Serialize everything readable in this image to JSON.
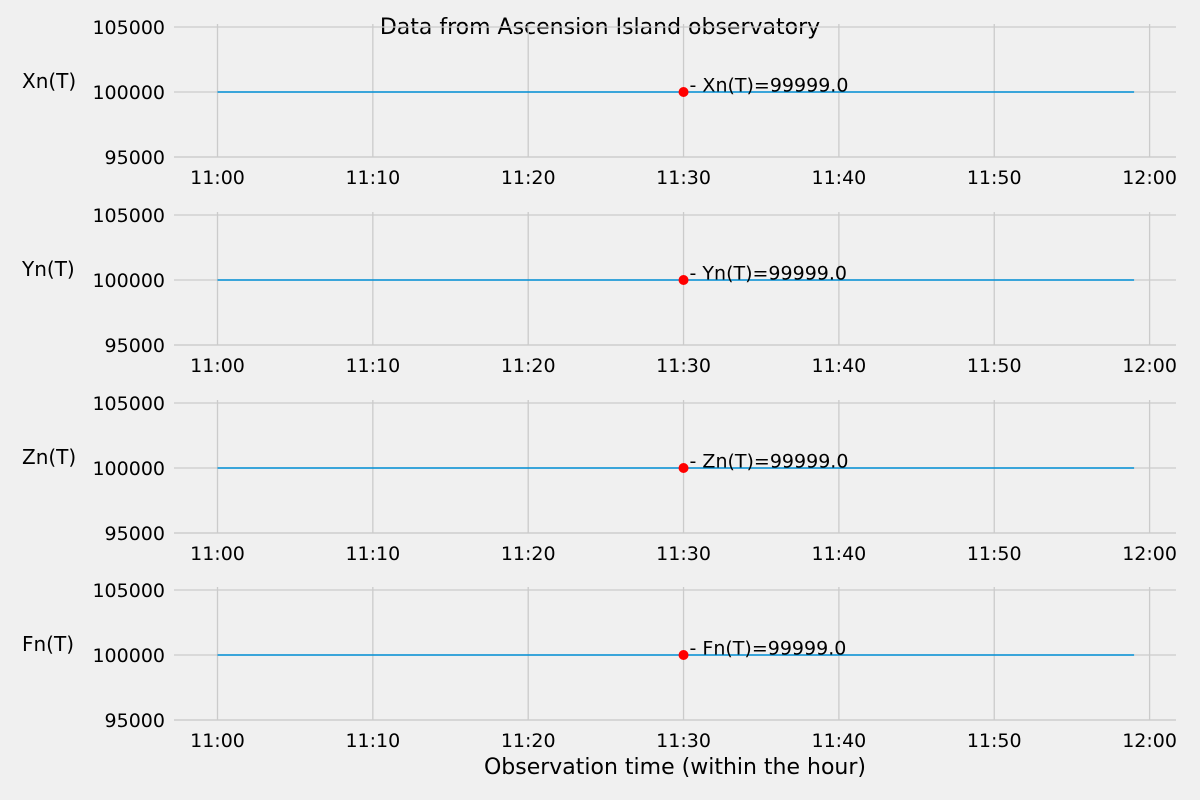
{
  "chart_data": {
    "type": "line",
    "title": "Data from  Ascension Island observatory",
    "xlabel": "Observation time (within the hour)",
    "x_ticks": [
      "11:00",
      "11:10",
      "11:20",
      "11:30",
      "11:40",
      "11:50",
      "12:00"
    ],
    "x_tick_minutes": [
      0,
      10,
      20,
      30,
      40,
      50,
      60
    ],
    "xlim_minutes": [
      -2.8,
      61.7
    ],
    "ylim": [
      95000,
      105000
    ],
    "y_ticks": [
      95000,
      100000,
      105000
    ],
    "grid": true,
    "line_color": "#008fd5",
    "marker_color": "#ff0000",
    "panels": [
      {
        "ylabel": "Xn(T)",
        "x_minutes": [
          0,
          59
        ],
        "values": [
          99999.0,
          99999.0
        ],
        "marker": {
          "x_minute": 30,
          "value": 99999.0,
          "label": "- Xn(T)=99999.0"
        }
      },
      {
        "ylabel": "Yn(T)",
        "x_minutes": [
          0,
          59
        ],
        "values": [
          99999.0,
          99999.0
        ],
        "marker": {
          "x_minute": 30,
          "value": 99999.0,
          "label": "- Yn(T)=99999.0"
        }
      },
      {
        "ylabel": "Zn(T)",
        "x_minutes": [
          0,
          59
        ],
        "values": [
          99999.0,
          99999.0
        ],
        "marker": {
          "x_minute": 30,
          "value": 99999.0,
          "label": "- Zn(T)=99999.0"
        }
      },
      {
        "ylabel": "Fn(T)",
        "x_minutes": [
          0,
          59
        ],
        "values": [
          99999.0,
          99999.0
        ],
        "marker": {
          "x_minute": 30,
          "value": 99999.0,
          "label": "- Fn(T)=99999.0"
        }
      }
    ]
  }
}
